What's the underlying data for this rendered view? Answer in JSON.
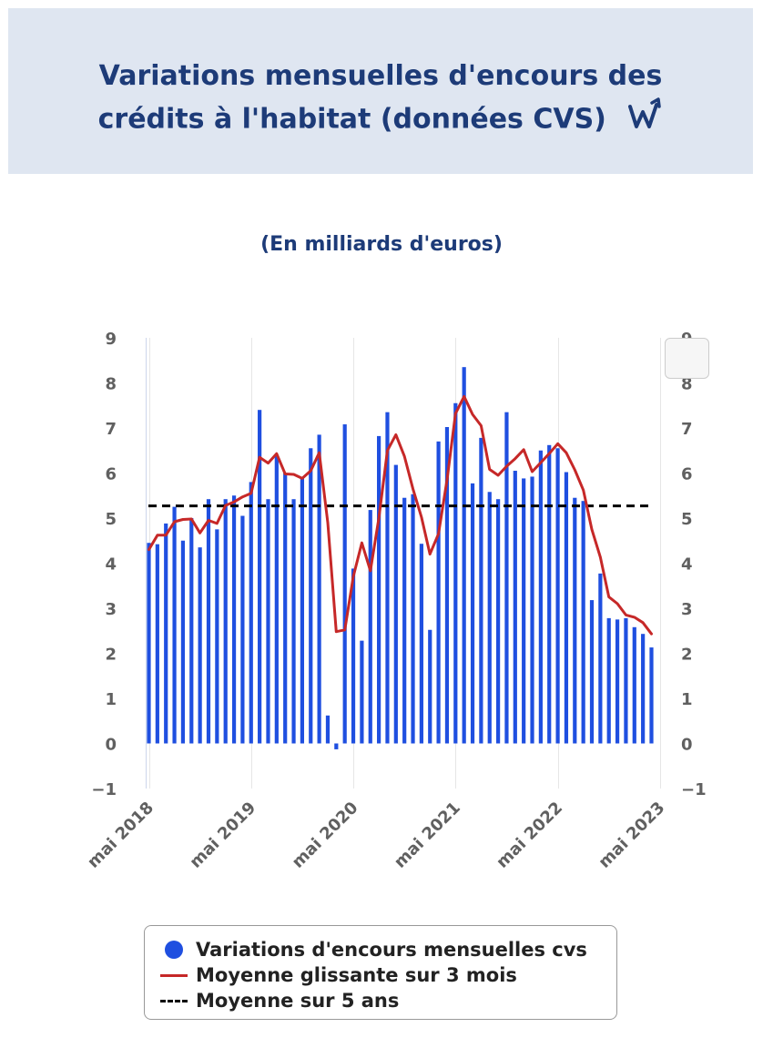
{
  "header": {
    "title_line1": "Variations mensuelles d'encours des",
    "title_line2": "crédits à l'habitat (données CVS)",
    "logo_icon": "trend-arrow-w-icon"
  },
  "subtitle": "(En milliards d'euros)",
  "colors": {
    "bars": "#1f4fe0",
    "moving_avg": "#c62828",
    "five_year_avg": "#000000",
    "header_bg": "#dfe6f1",
    "title": "#1d3b78"
  },
  "chart_data": {
    "type": "bar",
    "title": "Variations mensuelles d'encours des crédits à l'habitat (données CVS)",
    "subtitle": "(En milliards d'euros)",
    "xlabel": "",
    "ylabel": "",
    "ylim": [
      -1,
      9
    ],
    "yticks": [
      "9",
      "8",
      "7",
      "6",
      "5",
      "4",
      "3",
      "2",
      "1",
      "0",
      "−1"
    ],
    "y_tick_values": [
      9,
      8,
      7,
      6,
      5,
      4,
      3,
      2,
      1,
      0,
      -1
    ],
    "x_tick_labels": [
      "mai 2018",
      "mai 2019",
      "mai 2020",
      "mai 2021",
      "mai 2022",
      "mai 2023"
    ],
    "x_tick_indices": [
      0,
      12,
      24,
      36,
      48,
      60
    ],
    "series": [
      {
        "name": "Variations d'encours mensuelles cvs",
        "kind": "bar",
        "values": [
          4.45,
          4.42,
          4.88,
          5.25,
          4.5,
          5.0,
          4.35,
          5.42,
          4.75,
          5.42,
          5.5,
          5.05,
          5.8,
          7.4,
          5.42,
          6.4,
          6.0,
          5.42,
          5.9,
          6.55,
          6.85,
          0.62,
          -0.13,
          7.08,
          3.88,
          2.28,
          5.18,
          6.82,
          7.35,
          6.18,
          5.45,
          5.53,
          4.43,
          2.52,
          6.7,
          7.02,
          7.55,
          8.35,
          5.77,
          6.78,
          5.58,
          5.42,
          7.35,
          6.05,
          5.88,
          5.92,
          6.5,
          6.62,
          6.55,
          6.02,
          5.45,
          5.38,
          3.18,
          3.77,
          2.78,
          2.75,
          2.78,
          2.58,
          2.43,
          2.13
        ]
      },
      {
        "name": "Moyenne glissante sur 3 mois",
        "kind": "line",
        "values": [
          4.3,
          4.62,
          4.62,
          4.92,
          4.97,
          4.98,
          4.67,
          4.95,
          4.88,
          5.28,
          5.36,
          5.47,
          5.55,
          6.35,
          6.22,
          6.43,
          5.98,
          5.97,
          5.88,
          6.05,
          6.45,
          4.9,
          2.48,
          2.52,
          3.7,
          4.45,
          3.83,
          5.0,
          6.5,
          6.85,
          6.37,
          5.65,
          5.02,
          4.2,
          4.65,
          5.85,
          7.32,
          7.7,
          7.3,
          7.05,
          6.08,
          5.95,
          6.15,
          6.32,
          6.52,
          6.03,
          6.23,
          6.43,
          6.65,
          6.45,
          6.07,
          5.62,
          4.75,
          4.13,
          3.25,
          3.1,
          2.85,
          2.8,
          2.68,
          2.43
        ]
      },
      {
        "name": "Moyenne sur 5 ans",
        "kind": "dashed-line",
        "value": 5.27
      }
    ]
  },
  "legend": {
    "items": [
      {
        "label": "Variations d'encours mensuelles cvs",
        "symbol": "dot"
      },
      {
        "label": "Moyenne glissante sur 3 mois",
        "symbol": "red-line"
      },
      {
        "label": "Moyenne sur 5 ans",
        "symbol": "dashed-line"
      }
    ]
  }
}
